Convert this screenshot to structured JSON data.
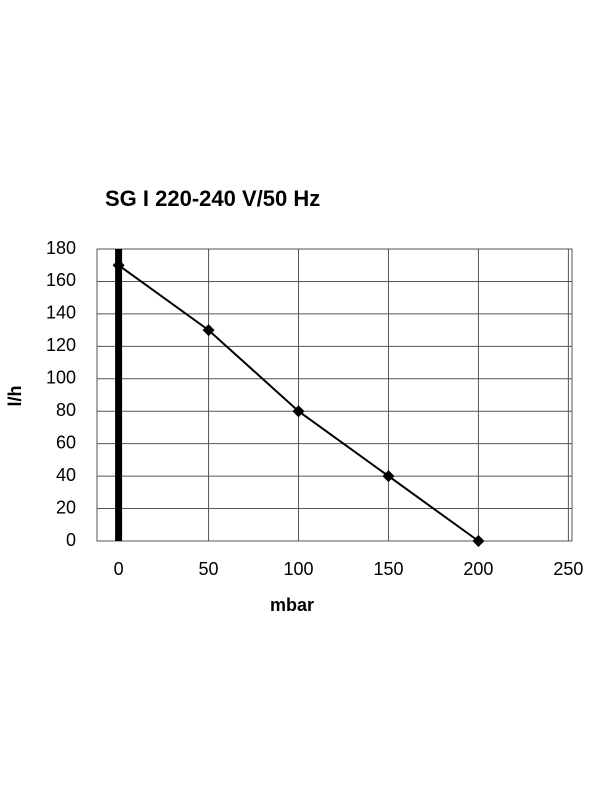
{
  "chart_data": {
    "type": "line",
    "title": "SG I 220-240 V/50 Hz",
    "x_label": "mbar",
    "y_label": "l/h",
    "x": [
      0,
      50,
      100,
      150,
      200
    ],
    "values": [
      170,
      130,
      80,
      40,
      0
    ],
    "color": "#000000",
    "marker": "diamond",
    "xlim": [
      -12,
      252
    ],
    "xticks": [
      0,
      50,
      100,
      150,
      200,
      250
    ],
    "ylim": [
      0,
      180
    ],
    "yticks": [
      0,
      20,
      40,
      60,
      80,
      100,
      120,
      140,
      160,
      180
    ],
    "grid": true
  }
}
